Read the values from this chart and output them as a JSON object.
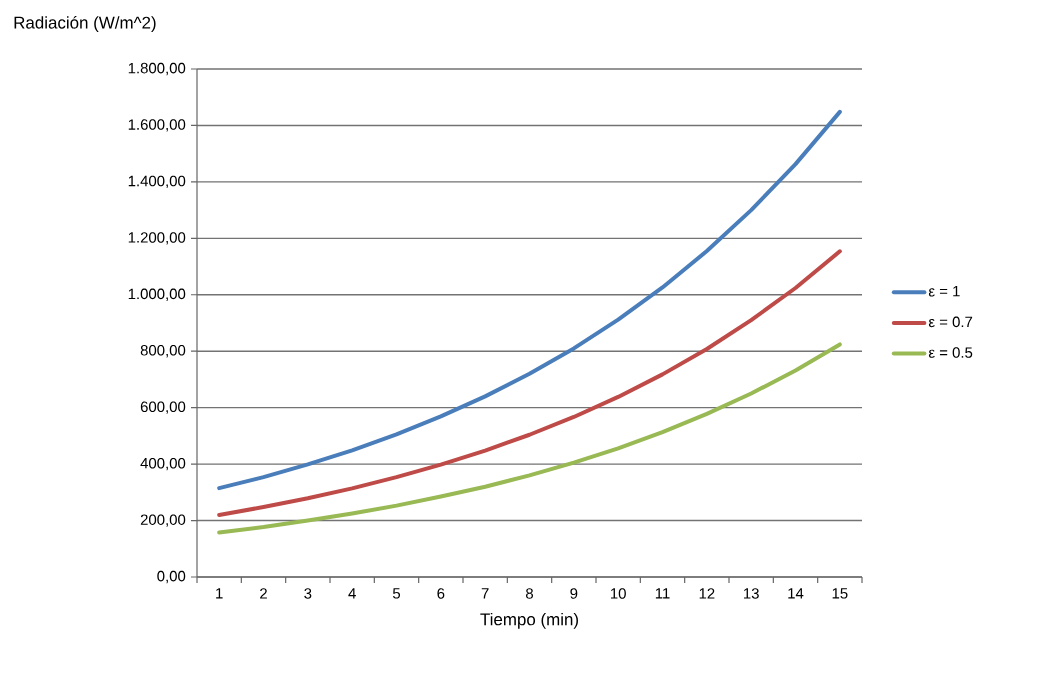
{
  "chart_data": {
    "type": "line",
    "xlabel": "Tiempo (min)",
    "ylabel": "Radiación (W/m^2)",
    "categories": [
      "1",
      "2",
      "3",
      "4",
      "5",
      "6",
      "7",
      "8",
      "9",
      "10",
      "11",
      "12",
      "13",
      "14",
      "15"
    ],
    "series": [
      {
        "name": "ε = 1",
        "color": "#4a7ebb",
        "values": [
          315,
          354,
          399,
          449,
          505,
          569,
          640,
          720,
          810,
          912,
          1026,
          1155,
          1300,
          1463,
          1648
        ]
      },
      {
        "name": "ε = 0.7",
        "color": "#be4b48",
        "values": [
          220,
          248,
          279,
          314,
          354,
          398,
          448,
          504,
          567,
          638,
          718,
          808,
          910,
          1024,
          1154
        ]
      },
      {
        "name": "ε = 0.5",
        "color": "#98b954",
        "values": [
          158,
          177,
          200,
          225,
          253,
          285,
          320,
          360,
          405,
          456,
          513,
          578,
          650,
          732,
          824
        ]
      }
    ],
    "ylim": [
      0,
      1800
    ],
    "yticks": [
      {
        "value": 0,
        "label": "0,00"
      },
      {
        "value": 200,
        "label": "200,00"
      },
      {
        "value": 400,
        "label": "400,00"
      },
      {
        "value": 600,
        "label": "600,00"
      },
      {
        "value": 800,
        "label": "800,00"
      },
      {
        "value": 1000,
        "label": "1.000,00"
      },
      {
        "value": 1200,
        "label": "1.200,00"
      },
      {
        "value": 1400,
        "label": "1.400,00"
      },
      {
        "value": 1600,
        "label": "1.600,00"
      },
      {
        "value": 1800,
        "label": "1.800,00"
      }
    ],
    "grid": "y",
    "legend": "right",
    "marker": "none",
    "line_style": "solid"
  }
}
